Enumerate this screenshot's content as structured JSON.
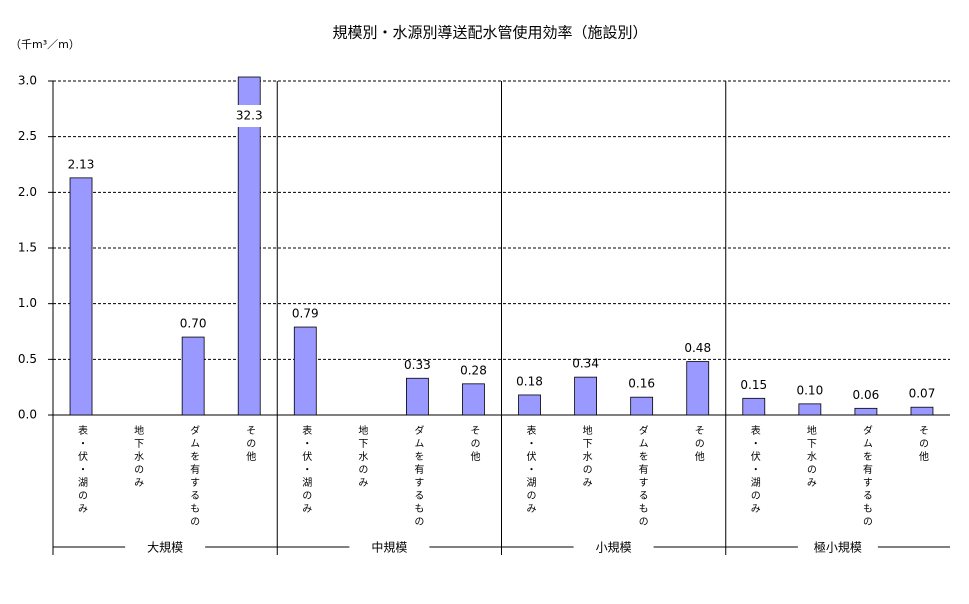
{
  "chart_data": {
    "type": "bar",
    "title": "規模別・水源別導送配水管使用効率（施設別）",
    "y_axis_label": "（千m³／m）",
    "groups": [
      "大規模",
      "中規模",
      "小規模",
      "極小規模"
    ],
    "categories": [
      "表・伏・湖のみ",
      "地下水のみ",
      "ダムを有するもの",
      "その他",
      "表・伏・湖のみ",
      "地下水のみ",
      "ダムを有するもの",
      "その他",
      "表・伏・湖のみ",
      "地下水のみ",
      "ダムを有するもの",
      "その他",
      "表・伏・湖のみ",
      "地下水のみ",
      "ダムを有するもの",
      "その他"
    ],
    "values": [
      2.13,
      null,
      0.7,
      32.3,
      0.79,
      null,
      0.33,
      0.28,
      0.18,
      0.34,
      0.16,
      0.48,
      0.15,
      0.1,
      0.06,
      0.07
    ],
    "value_labels": [
      "2.13",
      null,
      "0.70",
      "32.3",
      "0.79",
      null,
      "0.33",
      "0.28",
      "0.18",
      "0.34",
      "0.16",
      "0.48",
      "0.15",
      "0.10",
      "0.06",
      "0.07"
    ],
    "color": "#9999ff",
    "ylim": [
      0,
      3
    ],
    "yticks": [
      {
        "value": 0,
        "label": "0.0"
      },
      {
        "value": 0.5,
        "label": "0.5"
      },
      {
        "value": 1,
        "label": "1.0"
      },
      {
        "value": 1.5,
        "label": "1.5"
      },
      {
        "value": 2,
        "label": "2.0"
      },
      {
        "value": 2.5,
        "label": "2.5"
      },
      {
        "value": 3,
        "label": "3.0"
      }
    ],
    "grid": true
  }
}
